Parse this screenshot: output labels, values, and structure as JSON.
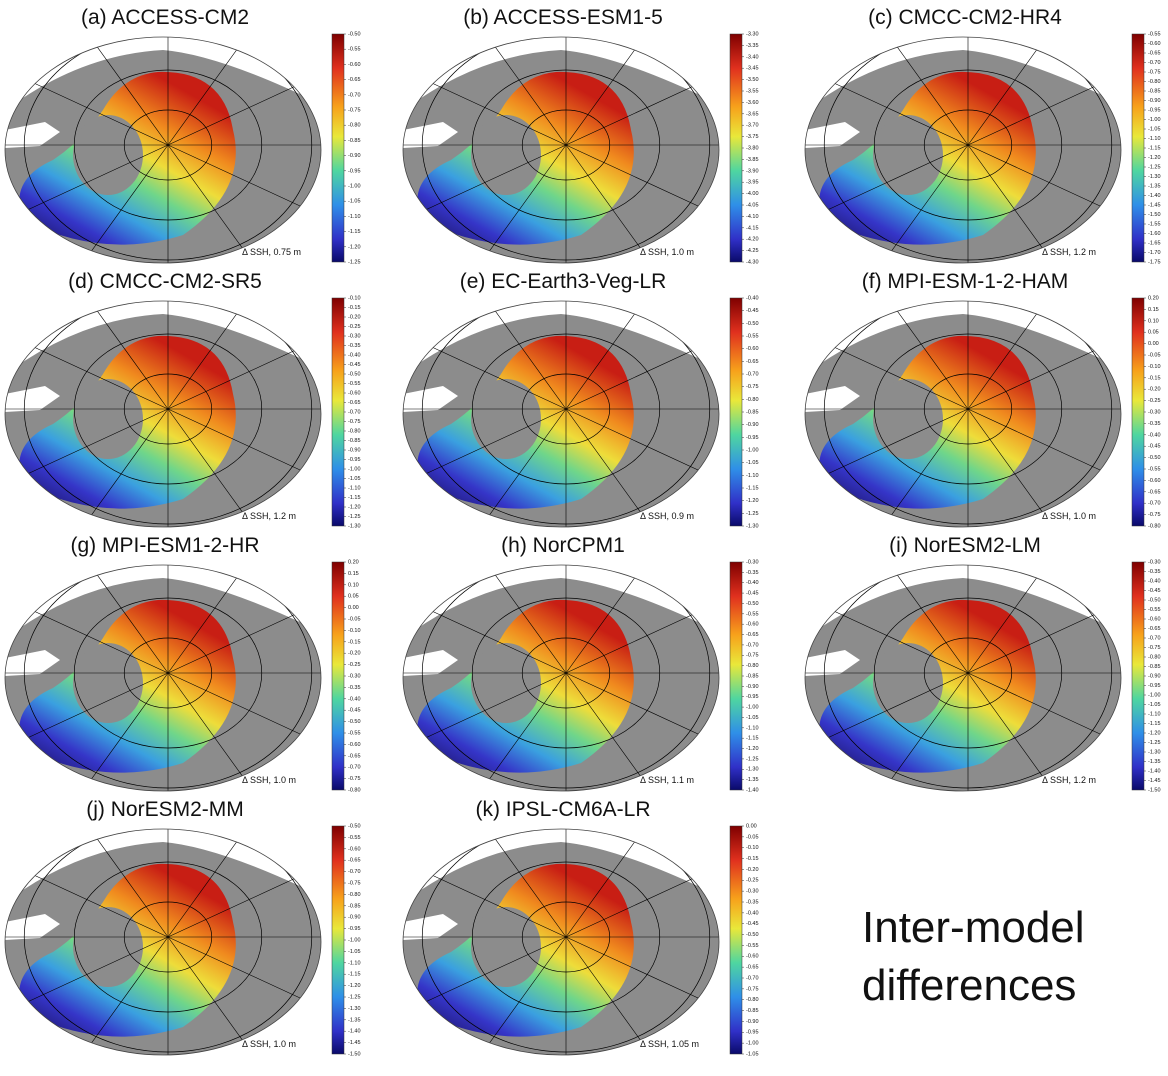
{
  "panels": [
    {
      "title": "(a) ACCESS-CM2",
      "note": "Δ SSH, 0.75 m",
      "colorbar": [
        "-0.50",
        "-0.55",
        "-0.60",
        "-0.65",
        "-0.70",
        "-0.75",
        "-0.80",
        "-0.85",
        "-0.90",
        "-0.95",
        "-1.00",
        "-1.05",
        "-1.10",
        "-1.15",
        "-1.20",
        "-1.25"
      ]
    },
    {
      "title": "(b) ACCESS-ESM1-5",
      "note": "Δ SSH, 1.0 m",
      "colorbar": [
        "-3.30",
        "-3.35",
        "-3.40",
        "-3.45",
        "-3.50",
        "-3.55",
        "-3.60",
        "-3.65",
        "-3.70",
        "-3.75",
        "-3.80",
        "-3.85",
        "-3.90",
        "-3.95",
        "-4.00",
        "-4.05",
        "-4.10",
        "-4.15",
        "-4.20",
        "-4.25",
        "-4.30"
      ]
    },
    {
      "title": "(c) CMCC-CM2-HR4",
      "note": "Δ SSH, 1.2 m",
      "colorbar": [
        "-0.55",
        "-0.60",
        "-0.65",
        "-0.70",
        "-0.75",
        "-0.80",
        "-0.85",
        "-0.90",
        "-0.95",
        "-1.00",
        "-1.05",
        "-1.10",
        "-1.15",
        "-1.20",
        "-1.25",
        "-1.30",
        "-1.35",
        "-1.40",
        "-1.45",
        "-1.50",
        "-1.55",
        "-1.60",
        "-1.65",
        "-1.70",
        "-1.75"
      ]
    },
    {
      "title": "(d) CMCC-CM2-SR5",
      "note": "Δ SSH, 1.2 m",
      "colorbar": [
        "-0.10",
        "-0.15",
        "-0.20",
        "-0.25",
        "-0.30",
        "-0.35",
        "-0.40",
        "-0.45",
        "-0.50",
        "-0.55",
        "-0.60",
        "-0.65",
        "-0.70",
        "-0.75",
        "-0.80",
        "-0.85",
        "-0.90",
        "-0.95",
        "-1.00",
        "-1.05",
        "-1.10",
        "-1.15",
        "-1.20",
        "-1.25",
        "-1.30"
      ]
    },
    {
      "title": "(e) EC-Earth3-Veg-LR",
      "note": "Δ SSH, 0.9 m",
      "colorbar": [
        "-0.40",
        "-0.45",
        "-0.50",
        "-0.55",
        "-0.60",
        "-0.65",
        "-0.70",
        "-0.75",
        "-0.80",
        "-0.85",
        "-0.90",
        "-0.95",
        "-1.00",
        "-1.05",
        "-1.10",
        "-1.15",
        "-1.20",
        "-1.25",
        "-1.30"
      ]
    },
    {
      "title": "(f) MPI-ESM-1-2-HAM",
      "note": "Δ SSH, 1.0 m",
      "colorbar": [
        "0.20",
        "0.15",
        "0.10",
        "0.05",
        "0.00",
        "-0.05",
        "-0.10",
        "-0.15",
        "-0.20",
        "-0.25",
        "-0.30",
        "-0.35",
        "-0.40",
        "-0.45",
        "-0.50",
        "-0.55",
        "-0.60",
        "-0.65",
        "-0.70",
        "-0.75",
        "-0.80"
      ]
    },
    {
      "title": "(g) MPI-ESM1-2-HR",
      "note": "Δ SSH, 1.0 m",
      "colorbar": [
        "0.20",
        "0.15",
        "0.10",
        "0.05",
        "0.00",
        "-0.05",
        "-0.10",
        "-0.15",
        "-0.20",
        "-0.25",
        "-0.30",
        "-0.35",
        "-0.40",
        "-0.45",
        "-0.50",
        "-0.55",
        "-0.60",
        "-0.65",
        "-0.70",
        "-0.75",
        "-0.80"
      ]
    },
    {
      "title": "(h) NorCPM1",
      "note": "Δ SSH, 1.1 m",
      "colorbar": [
        "-0.30",
        "-0.35",
        "-0.40",
        "-0.45",
        "-0.50",
        "-0.55",
        "-0.60",
        "-0.65",
        "-0.70",
        "-0.75",
        "-0.80",
        "-0.85",
        "-0.90",
        "-0.95",
        "-1.00",
        "-1.05",
        "-1.10",
        "-1.15",
        "-1.20",
        "-1.25",
        "-1.30",
        "-1.35",
        "-1.40"
      ]
    },
    {
      "title": "(i) NorESM2-LM",
      "note": "Δ SSH, 1.2 m",
      "colorbar": [
        "-0.30",
        "-0.35",
        "-0.40",
        "-0.45",
        "-0.50",
        "-0.55",
        "-0.60",
        "-0.65",
        "-0.70",
        "-0.75",
        "-0.80",
        "-0.85",
        "-0.90",
        "-0.95",
        "-1.00",
        "-1.05",
        "-1.10",
        "-1.15",
        "-1.20",
        "-1.25",
        "-1.30",
        "-1.35",
        "-1.40",
        "-1.45",
        "-1.50"
      ]
    },
    {
      "title": "(j) NorESM2-MM",
      "note": "Δ SSH, 1.0 m",
      "colorbar": [
        "-0.50",
        "-0.55",
        "-0.60",
        "-0.65",
        "-0.70",
        "-0.75",
        "-0.80",
        "-0.85",
        "-0.90",
        "-0.95",
        "-1.00",
        "-1.05",
        "-1.10",
        "-1.15",
        "-1.20",
        "-1.25",
        "-1.30",
        "-1.35",
        "-1.40",
        "-1.45",
        "-1.50"
      ]
    },
    {
      "title": "(k) IPSL-CM6A-LR",
      "note": "Δ SSH, 1.05 m",
      "colorbar": [
        "0.00",
        "-0.05",
        "-0.10",
        "-0.15",
        "-0.20",
        "-0.25",
        "-0.30",
        "-0.35",
        "-0.40",
        "-0.45",
        "-0.50",
        "-0.55",
        "-0.60",
        "-0.65",
        "-0.70",
        "-0.75",
        "-0.80",
        "-0.85",
        "-0.90",
        "-0.95",
        "-1.00",
        "-1.05"
      ]
    }
  ],
  "side_text": [
    "Inter-model",
    "differences"
  ]
}
